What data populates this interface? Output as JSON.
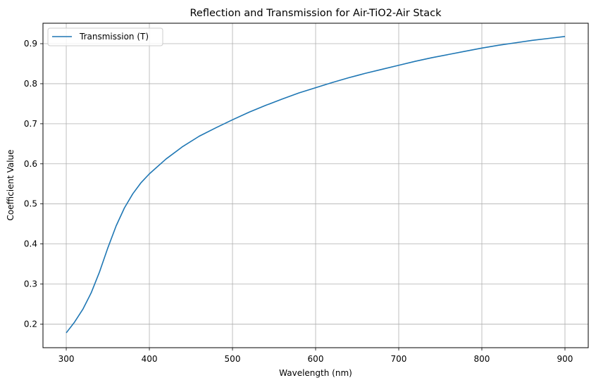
{
  "chart_data": {
    "type": "line",
    "title": "Reflection and Transmission for Air-TiO2-Air Stack",
    "xlabel": "Wavelength (nm)",
    "ylabel": "Coefficient Value",
    "xlim": [
      272,
      928
    ],
    "ylim": [
      0.141,
      0.951
    ],
    "xticks": [
      300,
      400,
      500,
      600,
      700,
      800,
      900
    ],
    "yticks": [
      0.2,
      0.3,
      0.4,
      0.5,
      0.6,
      0.7,
      0.8,
      0.9
    ],
    "grid": true,
    "legend": "upper left",
    "series": [
      {
        "name": "Transmission (T)",
        "color": "#1f77b4",
        "x": [
          300,
          310,
          320,
          330,
          340,
          350,
          360,
          370,
          380,
          390,
          400,
          420,
          440,
          460,
          480,
          500,
          520,
          540,
          560,
          580,
          600,
          620,
          640,
          660,
          680,
          700,
          720,
          740,
          760,
          780,
          800,
          820,
          840,
          860,
          880,
          900
        ],
        "y": [
          0.178,
          0.205,
          0.237,
          0.278,
          0.33,
          0.39,
          0.445,
          0.49,
          0.525,
          0.553,
          0.575,
          0.612,
          0.643,
          0.669,
          0.69,
          0.71,
          0.729,
          0.746,
          0.762,
          0.777,
          0.79,
          0.803,
          0.815,
          0.826,
          0.836,
          0.846,
          0.856,
          0.865,
          0.873,
          0.881,
          0.889,
          0.896,
          0.902,
          0.908,
          0.913,
          0.918
        ]
      }
    ]
  }
}
